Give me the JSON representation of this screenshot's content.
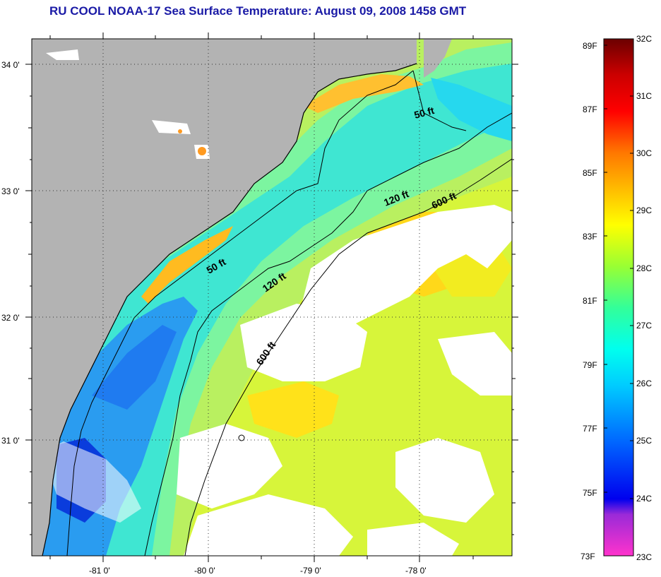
{
  "title": "RU COOL  NOAA-17  Sea Surface Temperature:  August 09, 2008 1458 GMT",
  "map": {
    "lat_labels": [
      "34 0'",
      "33 0'",
      "32 0'",
      "31 0'"
    ],
    "lon_labels": [
      "-81 0'",
      "-80 0'",
      "-79 0'",
      "-78 0'"
    ],
    "contours": [
      {
        "name": "50 ft",
        "label": "50 ft"
      },
      {
        "name": "120 ft",
        "label": "120 ft"
      },
      {
        "name": "600 ft",
        "label": "600 ft"
      }
    ],
    "contour_labels": {
      "c50_north": "50 ft",
      "c50_south": "50 ft",
      "c120_north": "120 ft",
      "c120_south": "120 ft",
      "c600_north": "600 ft",
      "c600_south": "600 ft"
    },
    "colors": {
      "land": "#b3b3b3",
      "cloud": "#ffffff"
    }
  },
  "colorbar": {
    "f_labels": [
      "89F",
      "87F",
      "85F",
      "83F",
      "81F",
      "79F",
      "77F",
      "75F",
      "73F"
    ],
    "c_labels": [
      "32C",
      "31C",
      "30C",
      "29C",
      "28C",
      "27C",
      "26C",
      "25C",
      "24C",
      "23C"
    ],
    "range_c": [
      23,
      32
    ],
    "range_f": [
      73,
      89.6
    ],
    "stops": [
      "#ff33cc",
      "#6a1bd4",
      "#0000ee",
      "#0066ff",
      "#00ccff",
      "#00ffee",
      "#33ff99",
      "#99ff33",
      "#ffff00",
      "#ffbb00",
      "#ff7700",
      "#ff0000",
      "#cc0000",
      "#6b0000"
    ]
  }
}
